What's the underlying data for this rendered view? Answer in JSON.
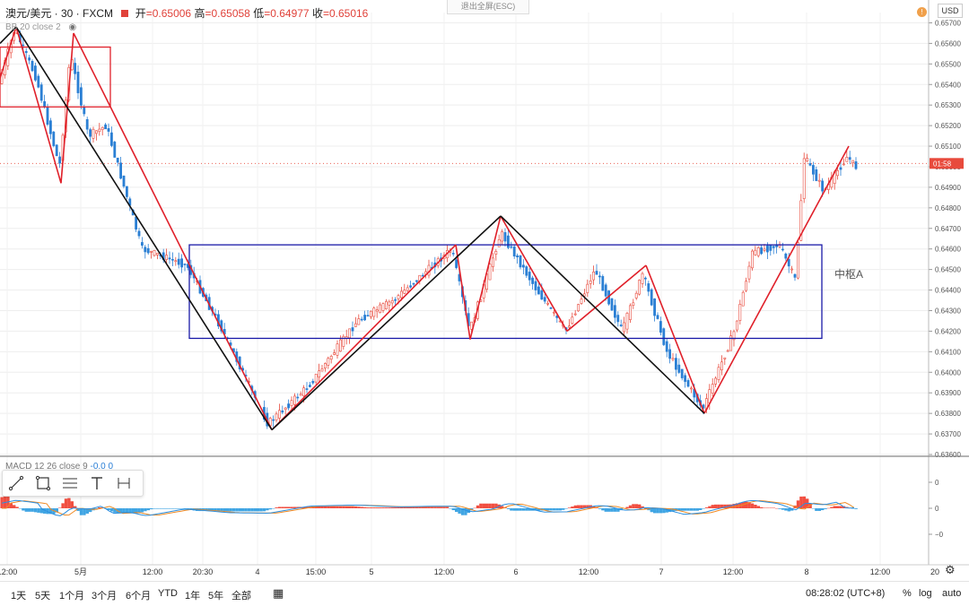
{
  "header": {
    "symbol": "澳元/美元 · 30 · FXCM",
    "open_label": "开",
    "open": "=0.65006",
    "high_label": "高",
    "high": "=0.65058",
    "low_label": "低",
    "low": "=0.64977",
    "close_label": "收",
    "close": "=0.65016",
    "indicator": "BB 20 close 2",
    "exit_fullscreen": "退出全屏(ESC)",
    "currency": "USD",
    "alert_badge": "!"
  },
  "macd_label": {
    "name": "MACD 12 26 close 9",
    "v1": "-0.0",
    "v2": "0"
  },
  "zhongshu_label": "中枢A",
  "countdown": "01:58",
  "bottom_bar": {
    "ranges": [
      "1天",
      "5天",
      "1个月",
      "3个月",
      "6个月",
      "YTD",
      "1年",
      "5年",
      "全部"
    ],
    "time": "08:28:02 (UTC+8)",
    "percent": "%",
    "log": "log",
    "auto": "auto"
  },
  "colors": {
    "up": "#e84a3c",
    "down": "#2a7fd4",
    "pivot_box": "#1a1aa8",
    "stroke_red": "#e0202a",
    "stroke_black": "#111111",
    "macd_line": "#2b8fe0",
    "signal_line": "#f08a24",
    "hist_pos": "#f03c2c",
    "hist_neg": "#2b9be0"
  },
  "chart_data": {
    "type": "candlestick",
    "price_axis": {
      "ticks": [
        "0.65700",
        "0.65600",
        "0.65500",
        "0.65400",
        "0.65300",
        "0.65200",
        "0.65100",
        "0.65000",
        "0.64900",
        "0.64800",
        "0.64700",
        "0.64600",
        "0.64500",
        "0.64400",
        "0.64300",
        "0.64200",
        "0.64100",
        "0.64000",
        "0.63900",
        "0.63800",
        "0.63700",
        "0.63600"
      ],
      "range": [
        0.636,
        0.6575
      ]
    },
    "macd_axis": {
      "ticks": [
        "0",
        "0",
        "−0"
      ]
    },
    "time_axis": [
      "12:00",
      "5月",
      "12:00",
      "20:30",
      "4",
      "15:00",
      "5",
      "12:00",
      "6",
      "12:00",
      "7",
      "12:00",
      "8",
      "12:00",
      "20"
    ],
    "pivot_zone": {
      "name": "中枢A",
      "top": 0.6462,
      "bottom": 0.64165,
      "from": "2:30",
      "to": "8 12:00"
    },
    "red_strokes": [
      [
        0.6543,
        0.6568
      ],
      [
        0.6568,
        0.6492
      ],
      [
        0.6492,
        0.6565
      ],
      [
        0.6565,
        0.6372
      ],
      [
        0.6372,
        0.6462
      ],
      [
        0.6462,
        0.6416
      ],
      [
        0.6416,
        0.6476
      ],
      [
        0.6476,
        0.642
      ],
      [
        0.642,
        0.6452
      ],
      [
        0.6452,
        0.638
      ],
      [
        0.638,
        0.651
      ]
    ],
    "black_strokes": [
      [
        0.6568,
        0.6372
      ],
      [
        0.6372,
        0.6476
      ],
      [
        0.6476,
        0.638
      ]
    ],
    "last_price": 0.65016
  }
}
